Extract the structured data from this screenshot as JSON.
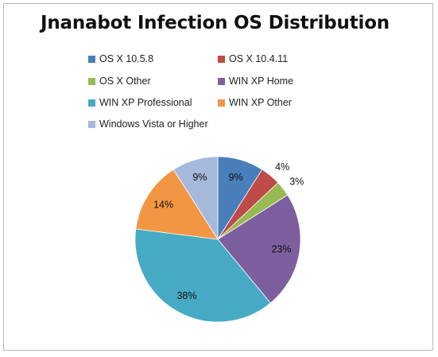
{
  "chart_data": {
    "type": "pie",
    "title": "Jnanabot Infection OS Distribution",
    "legend_position": "top",
    "slices": [
      {
        "label": "OS X 10.5.8",
        "value": 9,
        "value_label": "9%",
        "color": "#4a7ebb"
      },
      {
        "label": "OS X 10.4.11",
        "value": 4,
        "value_label": "4%",
        "color": "#be4b48"
      },
      {
        "label": "OS X Other",
        "value": 3,
        "value_label": "3%",
        "color": "#98b954"
      },
      {
        "label": "WIN XP Home",
        "value": 23,
        "value_label": "23%",
        "color": "#7d5fa0"
      },
      {
        "label": "WIN XP Professional",
        "value": 38,
        "value_label": "38%",
        "color": "#46aac5"
      },
      {
        "label": "WIN XP Other",
        "value": 14,
        "value_label": "14%",
        "color": "#f39644"
      },
      {
        "label": "Windows Vista or Higher",
        "value": 9,
        "value_label": "9%",
        "color": "#a5b9dc"
      }
    ]
  }
}
